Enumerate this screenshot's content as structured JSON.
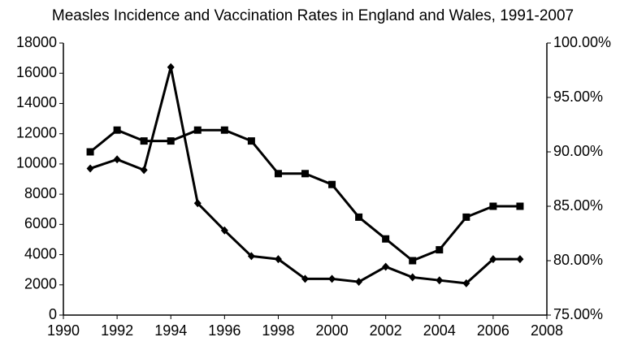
{
  "chart_data": {
    "type": "line",
    "title": "Measles Incidence and Vaccination Rates in England and Wales, 1991-2007",
    "x": [
      1991,
      1992,
      1993,
      1994,
      1995,
      1996,
      1997,
      1998,
      1999,
      2000,
      2001,
      2002,
      2003,
      2004,
      2005,
      2006,
      2007
    ],
    "xlim": [
      1990,
      2008
    ],
    "xticks": [
      1990,
      1992,
      1994,
      1996,
      1998,
      2000,
      2002,
      2004,
      2006,
      2008
    ],
    "ylim": [
      0,
      18000
    ],
    "yticks": [
      0,
      2000,
      4000,
      6000,
      8000,
      10000,
      12000,
      14000,
      16000,
      18000
    ],
    "y2lim": [
      75,
      100
    ],
    "y2ticks": [
      {
        "value": 75,
        "label": "75.00%"
      },
      {
        "value": 80,
        "label": "80.00%"
      },
      {
        "value": 85,
        "label": "85.00%"
      },
      {
        "value": 90,
        "label": "90.00%"
      },
      {
        "value": 95,
        "label": "95.00%"
      },
      {
        "value": 100,
        "label": "100.00%"
      }
    ],
    "grid": false,
    "series": [
      {
        "color": "#000000",
        "marker": "diamond",
        "values": [
          9700,
          10300,
          9600,
          16400,
          7400,
          5600,
          3900,
          3700,
          2400,
          2400,
          2200,
          3200,
          2500,
          2300,
          2100,
          3700,
          3700
        ]
      },
      {
        "color": "#000000",
        "marker": "square",
        "axis": "y2",
        "values": [
          90,
          92,
          91,
          91,
          92,
          92,
          91,
          88,
          88,
          87,
          84,
          82,
          80,
          81,
          84,
          85,
          85
        ]
      }
    ]
  }
}
